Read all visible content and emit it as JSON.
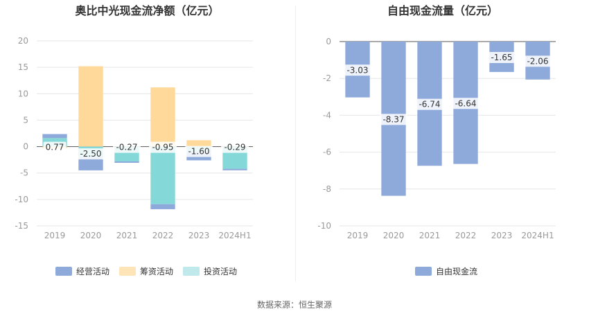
{
  "colors": {
    "operating": "#8eaadb",
    "financing": "#ffd99a",
    "investing": "#84d8d8",
    "fcf": "#8eaadb",
    "grid": "#e6e6e6",
    "axis_text": "#999999",
    "label_text": "#333333"
  },
  "source_text": "数据来源：恒生聚源",
  "chart_data": [
    {
      "type": "bar",
      "stacked": true,
      "title": "奥比中光现金流净额（亿元）",
      "categories": [
        "2019",
        "2020",
        "2021",
        "2022",
        "2023",
        "2024H1"
      ],
      "ylim": [
        -15,
        20
      ],
      "yticks": [
        "20",
        "15",
        "10",
        "5",
        "0",
        "-5",
        "-10",
        "-15"
      ],
      "grid": true,
      "legend_position": "bottom",
      "series": [
        {
          "name": "经营活动",
          "values": [
            0.77,
            -2.5,
            -0.27,
            -0.95,
            -1.6,
            -0.29
          ]
        },
        {
          "name": "筹资活动",
          "values": [
            -0.3,
            15.2,
            0.0,
            11.2,
            1.2,
            0.0
          ]
        },
        {
          "name": "投资活动",
          "values": [
            1.6,
            -2.0,
            -2.8,
            -10.9,
            -1.0,
            -4.2
          ]
        }
      ],
      "data_labels": [
        "0.77",
        "-2.50",
        "-0.27",
        "-0.95",
        "-1.60",
        "-0.29"
      ]
    },
    {
      "type": "bar",
      "title": "自由现金流量（亿元）",
      "categories": [
        "2019",
        "2020",
        "2021",
        "2022",
        "2023",
        "2024H1"
      ],
      "ylim": [
        -10,
        0
      ],
      "yticks": [
        "0",
        "-2",
        "-4",
        "-6",
        "-8",
        "-10"
      ],
      "grid": true,
      "legend_position": "bottom",
      "series": [
        {
          "name": "自由现金流",
          "values": [
            -3.03,
            -8.37,
            -6.74,
            -6.64,
            -1.65,
            -2.06
          ]
        }
      ],
      "data_labels": [
        "-3.03",
        "-8.37",
        "-6.74",
        "-6.64",
        "-1.65",
        "-2.06"
      ]
    }
  ]
}
